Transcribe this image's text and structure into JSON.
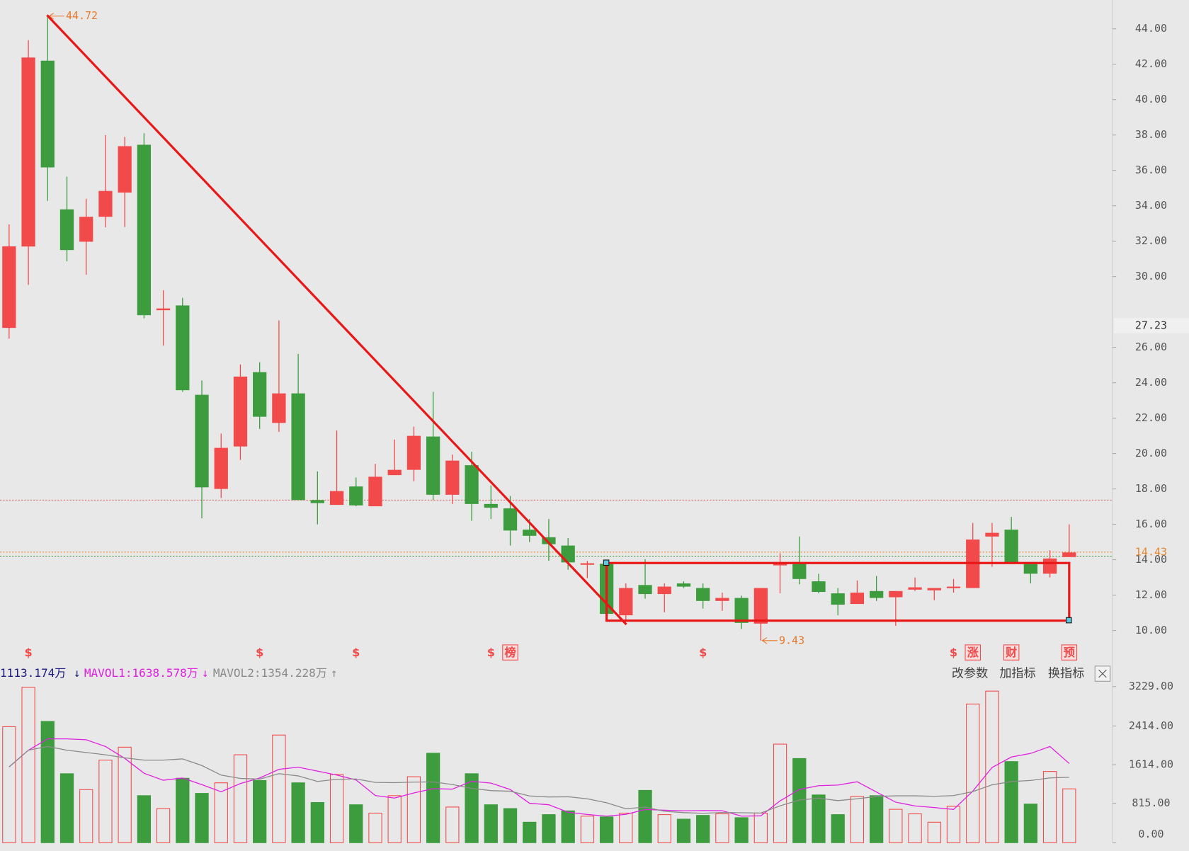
{
  "chart_data": [
    {
      "type": "candlestick",
      "open": [
        27.1,
        31.7,
        42.2,
        33.8,
        31.97,
        33.38,
        34.75,
        37.45,
        28.1,
        28.37,
        23.32,
        18.0,
        20.4,
        24.6,
        21.73,
        23.4,
        17.37,
        17.1,
        18.14,
        17.02,
        18.78,
        19.08,
        20.96,
        17.67,
        19.34,
        17.15,
        16.9,
        15.7,
        15.27,
        14.8,
        13.75,
        13.77,
        10.86,
        12.57,
        12.06,
        12.66,
        12.4,
        11.67,
        11.84,
        10.39,
        13.68,
        13.81,
        12.78,
        12.1,
        11.5,
        12.23,
        11.88,
        12.31,
        12.27,
        12.4,
        12.4,
        15.31,
        15.7,
        13.81,
        13.21,
        14.15
      ],
      "high": [
        32.95,
        43.36,
        44.72,
        35.65,
        34.4,
        38.0,
        37.9,
        38.1,
        29.23,
        28.8,
        24.13,
        21.13,
        25.03,
        25.16,
        27.52,
        25.63,
        18.99,
        21.3,
        18.65,
        19.42,
        20.79,
        21.52,
        23.49,
        19.94,
        20.1,
        18.2,
        17.6,
        16.3,
        16.3,
        15.22,
        13.94,
        13.85,
        12.66,
        14.03,
        12.66,
        12.78,
        12.66,
        12.14,
        11.97,
        12.4,
        14.37,
        15.31,
        13.21,
        12.4,
        12.83,
        13.08,
        12.23,
        13.0,
        12.4,
        12.91,
        16.08,
        16.08,
        16.42,
        13.81,
        14.54,
        16.0
      ],
      "low": [
        26.49,
        29.53,
        34.28,
        30.86,
        30.1,
        32.78,
        32.8,
        27.64,
        26.1,
        23.49,
        16.34,
        17.49,
        19.64,
        21.39,
        21.22,
        17.37,
        16.0,
        17.1,
        17.02,
        17.02,
        18.78,
        18.44,
        17.37,
        17.15,
        16.2,
        16.3,
        14.8,
        15.0,
        13.94,
        13.43,
        12.96,
        10.86,
        10.5,
        11.8,
        11.03,
        12.4,
        11.24,
        11.11,
        10.09,
        9.43,
        12.1,
        12.61,
        12.1,
        10.86,
        11.5,
        11.67,
        10.26,
        12.23,
        11.71,
        12.14,
        12.4,
        13.6,
        13.81,
        12.66,
        13.0,
        14.15
      ],
      "close": [
        31.71,
        42.38,
        36.17,
        31.5,
        33.38,
        34.84,
        37.37,
        27.82,
        28.2,
        23.58,
        18.09,
        20.32,
        24.35,
        22.08,
        23.4,
        17.37,
        17.2,
        17.88,
        17.07,
        18.69,
        19.08,
        21.0,
        17.67,
        19.6,
        17.15,
        16.94,
        15.65,
        15.35,
        14.88,
        13.85,
        13.8,
        10.94,
        12.4,
        12.06,
        12.48,
        12.48,
        11.67,
        11.84,
        10.43,
        12.4,
        13.81,
        12.91,
        12.18,
        11.46,
        12.14,
        11.84,
        12.23,
        12.44,
        12.4,
        12.48,
        15.14,
        15.52,
        13.81,
        13.21,
        14.07,
        14.41
      ],
      "up_color": "#f24a4a",
      "down_color": "#3d9c3d",
      "ylim": [
        8.16,
        45.63
      ],
      "yticks": [
        {
          "value": 10,
          "label": "10.00"
        },
        {
          "value": 12,
          "label": "12.00"
        },
        {
          "value": 14,
          "label": "14.00"
        },
        {
          "value": 16,
          "label": "16.00"
        },
        {
          "value": 18,
          "label": "18.00"
        },
        {
          "value": 20,
          "label": "20.00"
        },
        {
          "value": 22,
          "label": "22.00"
        },
        {
          "value": 24,
          "label": "24.00"
        },
        {
          "value": 26,
          "label": "26.00"
        },
        {
          "value": 30,
          "label": "30.00"
        },
        {
          "value": 32,
          "label": "32.00"
        },
        {
          "value": 34,
          "label": "34.00"
        },
        {
          "value": 36,
          "label": "36.00"
        },
        {
          "value": 38,
          "label": "38.00"
        },
        {
          "value": 40,
          "label": "40.00"
        },
        {
          "value": 42,
          "label": "42.00"
        },
        {
          "value": 44,
          "label": "44.00"
        }
      ],
      "high_label": 44.72,
      "low_label": 9.43,
      "reference_lines": [
        {
          "value": 17.37,
          "color": "#e05a5a"
        },
        {
          "value": 14.43,
          "color": "#e8862e"
        },
        {
          "value": 14.2,
          "color": "#3d9c3d"
        }
      ],
      "crosshair_price": 27.23,
      "event_icons": [
        null,
        "$",
        null,
        null,
        null,
        null,
        null,
        null,
        null,
        null,
        null,
        null,
        null,
        "$",
        null,
        null,
        null,
        null,
        "$",
        null,
        null,
        null,
        null,
        null,
        null,
        "$",
        "榜",
        null,
        null,
        null,
        null,
        null,
        null,
        null,
        null,
        null,
        "$",
        null,
        null,
        null,
        null,
        null,
        null,
        null,
        null,
        null,
        null,
        null,
        null,
        "$",
        "涨",
        null,
        "财",
        null,
        null,
        "预"
      ]
    },
    {
      "type": "bar",
      "values": [
        2398,
        3213,
        2508,
        1426,
        1097,
        1708,
        1975,
        972,
        705,
        1332,
        1019,
        1238,
        1818,
        1285,
        2226,
        1238,
        831,
        1411,
        784,
        611,
        972,
        1364,
        1850,
        737,
        1426,
        784,
        705,
        423,
        580,
        658,
        549,
        533,
        611,
        1081,
        580,
        486,
        564,
        596,
        517,
        611,
        2038,
        1740,
        987,
        580,
        956,
        972,
        690,
        596,
        423,
        752,
        2868,
        3135,
        1677,
        799,
        1473,
        1113
      ],
      "ylim": [
        0,
        3229
      ],
      "yticks": [
        {
          "value": 0,
          "label": "0.00"
        },
        {
          "value": 815,
          "label": "815.00"
        },
        {
          "value": 1614,
          "label": "1614.00"
        },
        {
          "value": 2414,
          "label": "2414.00"
        },
        {
          "value": 3229,
          "label": "3229.00"
        }
      ],
      "lines": [
        {
          "color": "#e020e0",
          "values": [
            1567,
            1912,
            2147,
            2147,
            2128,
            1990,
            1743,
            1436,
            1291,
            1338,
            1201,
            1053,
            1222,
            1338,
            1517,
            1561,
            1480,
            1398,
            1298,
            975,
            922,
            1028,
            1116,
            1107,
            1270,
            1232,
            1100,
            815,
            784,
            630,
            583,
            549,
            586,
            686,
            671,
            658,
            664,
            661,
            549,
            555,
            865,
            1100,
            1179,
            1191,
            1260,
            1047,
            837,
            759,
            727,
            687,
            1066,
            1555,
            1771,
            1846,
            1990,
            1639
          ]
        },
        {
          "color": "#8a8a8a",
          "values": [
            1567,
            1912,
            1990,
            1912,
            1865,
            1818,
            1755,
            1708,
            1708,
            1733,
            1596,
            1398,
            1329,
            1315,
            1428,
            1381,
            1266,
            1310,
            1318,
            1246,
            1241,
            1254,
            1257,
            1202,
            1122,
            1077,
            1064,
            966,
            945,
            950,
            908,
            825,
            701,
            735,
            650,
            621,
            607,
            624,
            618,
            613,
            762,
            882,
            920,
            870,
            908,
            956,
            969,
            969,
            959,
            973,
            1056,
            1196,
            1265,
            1287,
            1339,
            1353
          ]
        }
      ],
      "legend": [
        "1113.174万",
        "↓",
        "MAVOL1:1638.578万",
        "↓",
        "MAVOL2:1354.228万",
        "↑"
      ]
    }
  ],
  "toolbar": [
    "改参数",
    "加指标",
    "换指标"
  ]
}
